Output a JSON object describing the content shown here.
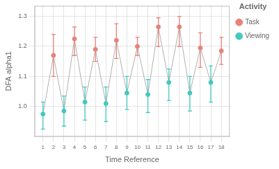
{
  "chart_data": {
    "type": "scatter",
    "xlabel": "Time Reference",
    "ylabel": "DFA alpha1",
    "legend_title": "Activity",
    "series": [
      {
        "color": "#B0B0B0",
        "line_style": "solid",
        "marker": "none",
        "x": [
          1,
          2,
          3,
          4,
          5,
          6,
          7,
          8,
          9,
          10,
          11,
          12,
          13,
          14,
          15,
          16,
          17,
          18
        ],
        "values": [
          0.975,
          1.17,
          0.985,
          1.225,
          1.015,
          1.19,
          1.01,
          1.22,
          1.045,
          1.2,
          1.04,
          1.265,
          1.08,
          1.265,
          1.045,
          1.195,
          1.08,
          1.185
        ]
      },
      {
        "name": "Task",
        "color": "#E8827A",
        "line_style": "none",
        "marker": "circle",
        "x": [
          2,
          4,
          6,
          8,
          10,
          12,
          14,
          16,
          18
        ],
        "values": [
          1.17,
          1.225,
          1.19,
          1.22,
          1.2,
          1.265,
          1.265,
          1.195,
          1.185
        ],
        "low": [
          1.1,
          1.17,
          1.15,
          1.16,
          1.17,
          1.2,
          1.2,
          1.13,
          1.14
        ],
        "high": [
          1.24,
          1.265,
          1.23,
          1.275,
          1.23,
          1.295,
          1.3,
          1.245,
          1.23
        ]
      },
      {
        "name": "Viewing",
        "color": "#44C8C0",
        "line_style": "none",
        "marker": "circle",
        "x": [
          1,
          3,
          5,
          7,
          9,
          11,
          13,
          15,
          17
        ],
        "values": [
          0.975,
          0.985,
          1.015,
          1.01,
          1.045,
          1.04,
          1.08,
          1.045,
          1.08
        ],
        "low": [
          0.925,
          0.935,
          0.955,
          0.95,
          0.99,
          0.98,
          1.02,
          0.985,
          1.015
        ],
        "high": [
          1.015,
          1.035,
          1.065,
          1.065,
          1.1,
          1.09,
          1.125,
          1.1,
          1.135
        ]
      }
    ],
    "xlim": [
      0.2,
      18.8
    ],
    "xticks": [
      1,
      2,
      3,
      4,
      5,
      6,
      7,
      8,
      9,
      10,
      11,
      12,
      13,
      14,
      15,
      16,
      17,
      18
    ],
    "ylim": [
      0.9,
      1.335
    ],
    "yticks": [
      {
        "value": 1.0,
        "label": "1.0"
      },
      1.1,
      1.2,
      1.3
    ],
    "grid": true,
    "legend": "right"
  }
}
